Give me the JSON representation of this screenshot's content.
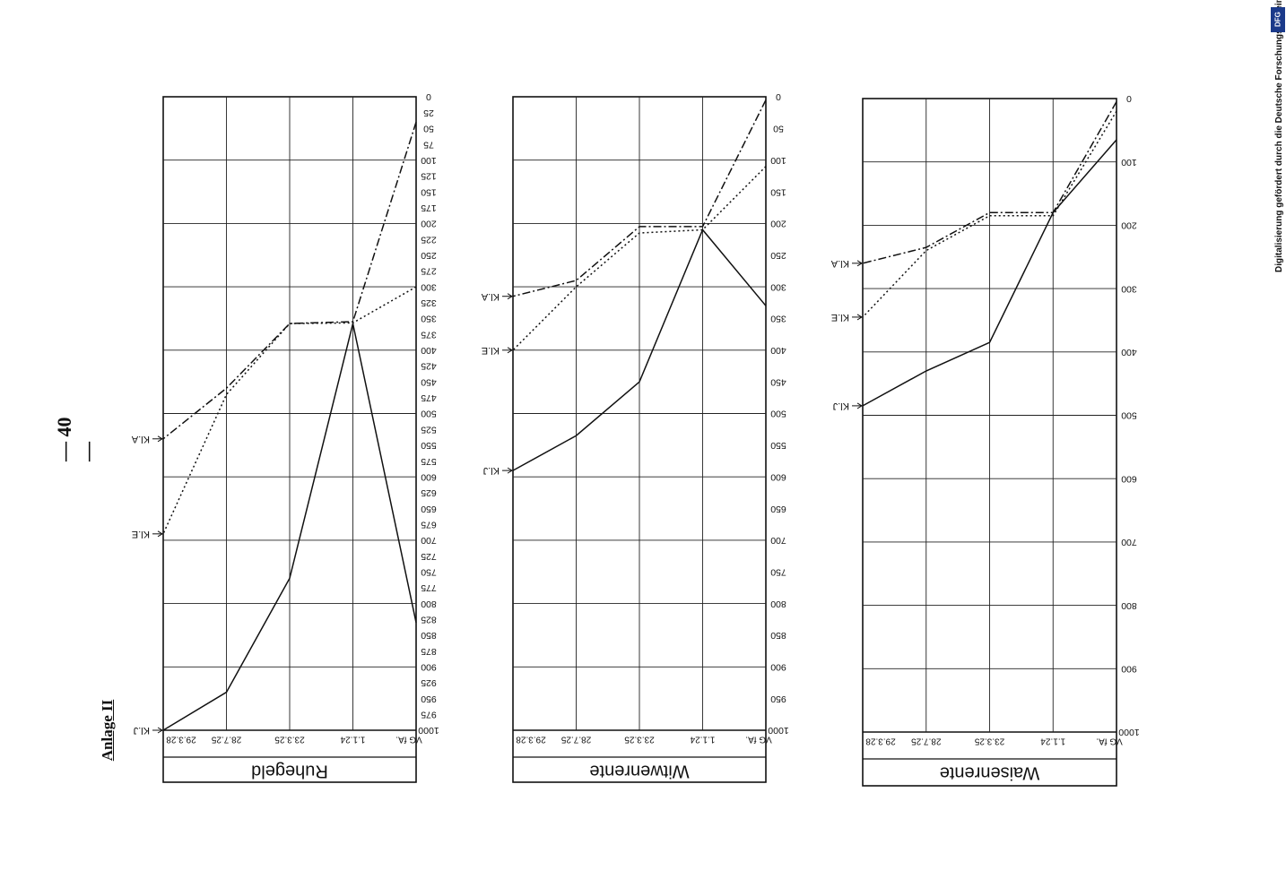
{
  "page": {
    "page_number": "— 40 —",
    "appendix_label": "Anlage II",
    "dfg_notice": "Digitalisierung gefördert durch die Deutsche Forschungsgemeinschaft •",
    "dfg_logo": "DFG"
  },
  "chart_data": [
    {
      "type": "line",
      "title": "Ruhegeld",
      "categories": [
        "VG fA.",
        "1.1.24",
        "23.3.25",
        "28.7.25",
        "29.3.28"
      ],
      "ylim": [
        1000,
        0
      ],
      "y_ticks": [
        0,
        25,
        50,
        75,
        100,
        125,
        150,
        175,
        200,
        225,
        250,
        275,
        300,
        325,
        350,
        375,
        400,
        425,
        450,
        475,
        500,
        525,
        550,
        575,
        600,
        625,
        650,
        675,
        700,
        725,
        750,
        775,
        800,
        825,
        850,
        875,
        900,
        925,
        950,
        975,
        1000
      ],
      "grid": true,
      "series": [
        {
          "name": "Kl.J",
          "dash": "solid",
          "values": [
            830,
            358,
            760,
            940,
            1000
          ]
        },
        {
          "name": "Kl.E",
          "dash": "dotted",
          "values": [
            300,
            357,
            358,
            470,
            690
          ]
        },
        {
          "name": "Kl.A",
          "dash": "dashdot",
          "values": [
            40,
            355,
            358,
            460,
            540
          ]
        }
      ]
    },
    {
      "type": "line",
      "title": "Witwenrente",
      "categories": [
        "VG fA.",
        "1.1.24",
        "23.3.25",
        "28.7.25",
        "29.3.28"
      ],
      "ylim": [
        1000,
        0
      ],
      "y_ticks": [
        0,
        50,
        100,
        150,
        200,
        250,
        300,
        350,
        400,
        450,
        500,
        550,
        600,
        650,
        700,
        750,
        800,
        850,
        900,
        950,
        1000
      ],
      "grid": true,
      "series": [
        {
          "name": "Kl.J",
          "dash": "solid",
          "values": [
            330,
            210,
            450,
            535,
            590
          ]
        },
        {
          "name": "Kl.E",
          "dash": "dotted",
          "values": [
            110,
            210,
            215,
            300,
            400
          ]
        },
        {
          "name": "Kl.A",
          "dash": "dashdot",
          "values": [
            5,
            205,
            205,
            290,
            315
          ]
        }
      ]
    },
    {
      "type": "line",
      "title": "Waisenrente",
      "categories": [
        "VG fA.",
        "1.1.24",
        "23.3.25",
        "28.7.25",
        "29.3.28"
      ],
      "ylim": [
        1000,
        0
      ],
      "y_ticks": [
        0,
        100,
        200,
        300,
        400,
        500,
        600,
        700,
        800,
        900,
        1000
      ],
      "grid": true,
      "series": [
        {
          "name": "Kl.J",
          "dash": "solid",
          "values": [
            65,
            180,
            385,
            430,
            485
          ]
        },
        {
          "name": "Kl.E",
          "dash": "dotted",
          "values": [
            20,
            185,
            185,
            240,
            345
          ]
        },
        {
          "name": "Kl.A",
          "dash": "dashdot",
          "values": [
            5,
            180,
            180,
            235,
            260
          ]
        }
      ]
    }
  ]
}
